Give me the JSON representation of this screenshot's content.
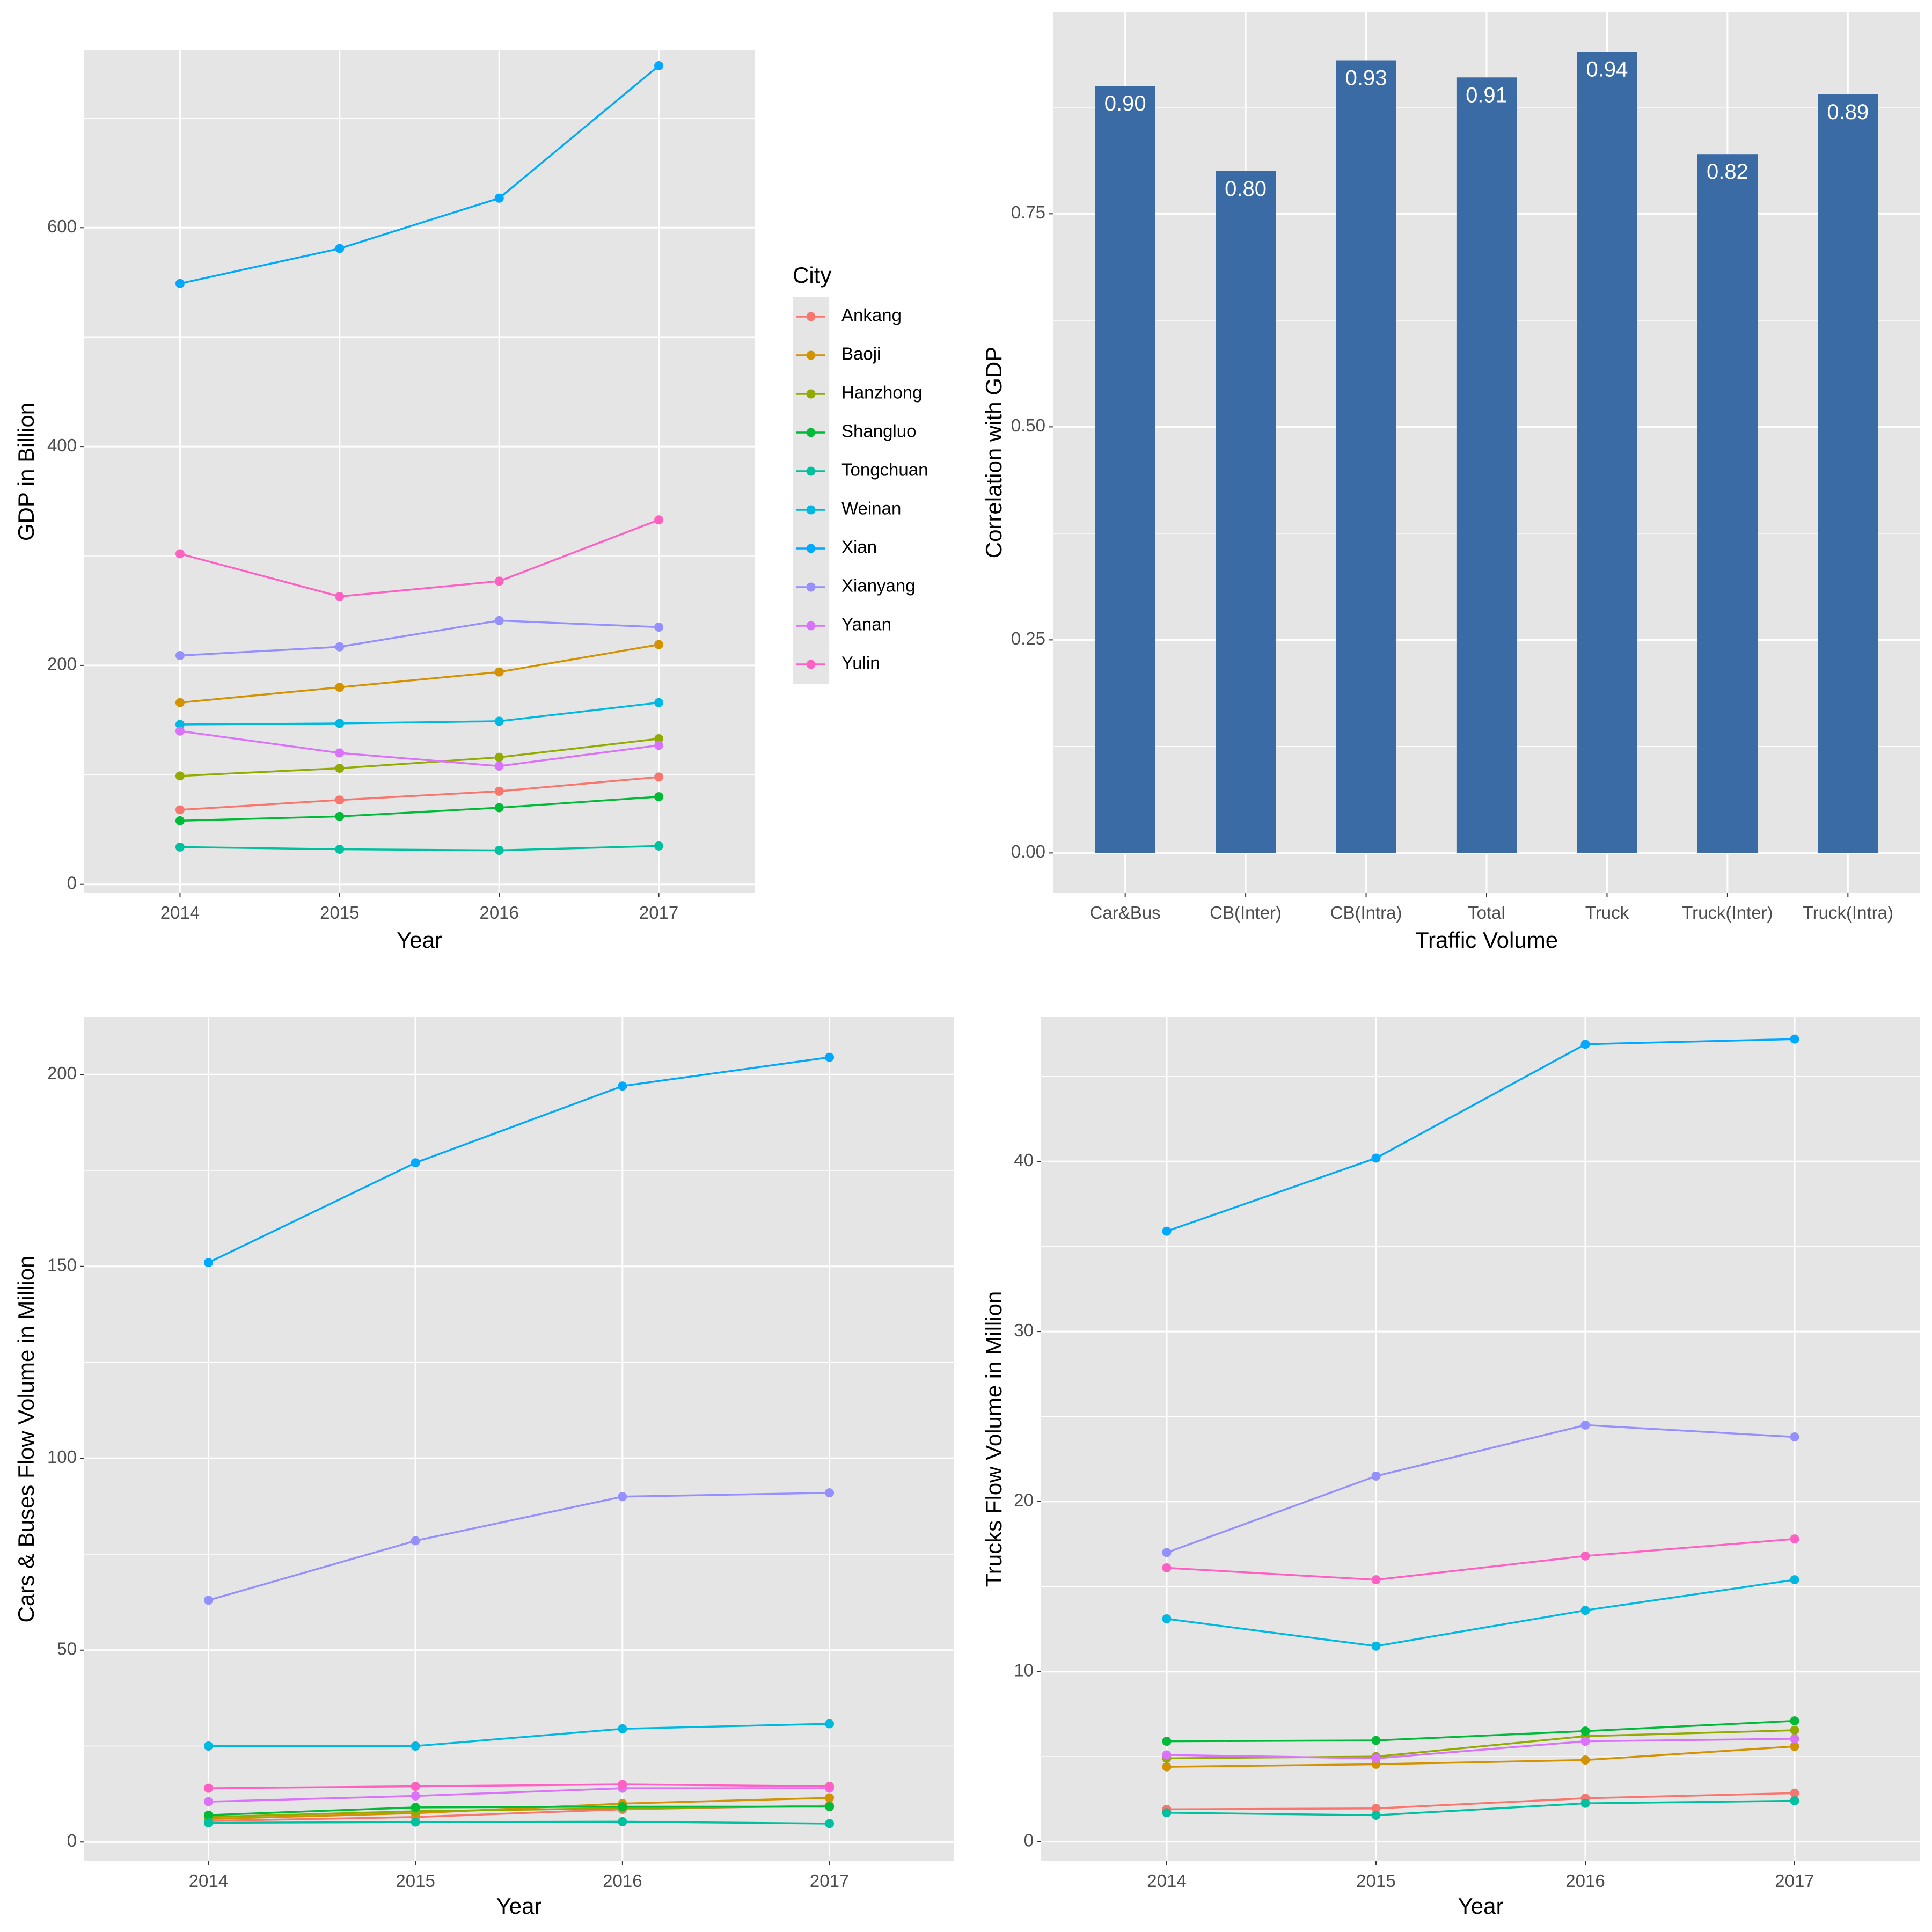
{
  "legend": {
    "title": "City",
    "cities": [
      "Ankang",
      "Baoji",
      "Hanzhong",
      "Shangluo",
      "Tongchuan",
      "Weinan",
      "Xian",
      "Xianyang",
      "Yanan",
      "Yulin"
    ],
    "colors": [
      "#F8766D",
      "#D39200",
      "#93AA00",
      "#00BA38",
      "#00C19F",
      "#00B9E3",
      "#00A8FF",
      "#9590FF",
      "#DB72FB",
      "#FF61C3"
    ]
  },
  "panel_bg": "#E5E5E5",
  "grid_color": "#FFFFFF",
  "bar_color": "#3A6BA5",
  "chart_data": [
    {
      "id": "gdp",
      "type": "line",
      "title": "",
      "xlabel": "Year",
      "ylabel": "GDP in Billion",
      "x": [
        "2014",
        "2015",
        "2016",
        "2017"
      ],
      "ylim": [
        -8,
        762
      ],
      "yticks": [
        0,
        200,
        400,
        600
      ],
      "ytick_labels": [
        "0",
        "200",
        "400",
        "600"
      ],
      "series": [
        {
          "name": "Ankang",
          "values": [
            68,
            77,
            85,
            98
          ]
        },
        {
          "name": "Baoji",
          "values": [
            166,
            180,
            194,
            219
          ]
        },
        {
          "name": "Hanzhong",
          "values": [
            99,
            106,
            116,
            133
          ]
        },
        {
          "name": "Shangluo",
          "values": [
            58,
            62,
            70,
            80
          ]
        },
        {
          "name": "Tongchuan",
          "values": [
            34,
            32,
            31,
            35
          ]
        },
        {
          "name": "Weinan",
          "values": [
            146,
            147,
            149,
            166
          ]
        },
        {
          "name": "Xian",
          "values": [
            549,
            581,
            627,
            748
          ]
        },
        {
          "name": "Xianyang",
          "values": [
            209,
            217,
            241,
            235
          ]
        },
        {
          "name": "Yanan",
          "values": [
            140,
            120,
            108,
            127
          ]
        },
        {
          "name": "Yulin",
          "values": [
            302,
            263,
            277,
            333
          ]
        }
      ]
    },
    {
      "id": "corr",
      "type": "bar",
      "title": "",
      "xlabel": "Traffic Volume",
      "ylabel": "Correlation with GDP",
      "categories": [
        "Car&Bus",
        "CB(Inter)",
        "CB(Intra)",
        "Total",
        "Truck",
        "Truck(Inter)",
        "Truck(Intra)"
      ],
      "values": [
        0.9,
        0.8,
        0.93,
        0.91,
        0.94,
        0.82,
        0.89
      ],
      "data_labels": [
        "0.90",
        "0.80",
        "0.93",
        "0.91",
        "0.94",
        "0.82",
        "0.89"
      ],
      "ylim": [
        -0.047,
        0.987
      ],
      "yticks": [
        0,
        0.25,
        0.5,
        0.75
      ],
      "ytick_labels": [
        "0.00",
        "0.25",
        "0.50",
        "0.75"
      ]
    },
    {
      "id": "carbus",
      "type": "line",
      "title": "",
      "xlabel": "Year",
      "ylabel": "Cars & Buses Flow Volume in Million",
      "x": [
        "2014",
        "2015",
        "2016",
        "2017"
      ],
      "ylim": [
        -5,
        215
      ],
      "yticks": [
        0,
        50,
        100,
        150,
        200
      ],
      "ytick_labels": [
        "0",
        "50",
        "100",
        "150",
        "200"
      ],
      "series": [
        {
          "name": "Ankang",
          "values": [
            5.5,
            6.5,
            8.5,
            9.5
          ]
        },
        {
          "name": "Baoji",
          "values": [
            6.0,
            7.5,
            10.0,
            11.5
          ]
        },
        {
          "name": "Hanzhong",
          "values": [
            6.5,
            8.0,
            8.8,
            9.3
          ]
        },
        {
          "name": "Shangluo",
          "values": [
            7.0,
            9.0,
            9.2,
            9.2
          ]
        },
        {
          "name": "Tongchuan",
          "values": [
            5.0,
            5.2,
            5.3,
            4.8
          ]
        },
        {
          "name": "Weinan",
          "values": [
            25.0,
            25.0,
            29.5,
            30.8
          ]
        },
        {
          "name": "Xian",
          "values": [
            151.0,
            177.0,
            197.0,
            204.5
          ]
        },
        {
          "name": "Xianyang",
          "values": [
            63.0,
            78.5,
            90.0,
            91.0
          ]
        },
        {
          "name": "Yanan",
          "values": [
            10.5,
            12.0,
            14.0,
            14.0
          ]
        },
        {
          "name": "Yulin",
          "values": [
            14.0,
            14.5,
            15.0,
            14.5
          ]
        }
      ]
    },
    {
      "id": "truck",
      "type": "line",
      "title": "",
      "xlabel": "Year",
      "ylabel": "Trucks Flow Volume in Million",
      "x": [
        "2014",
        "2015",
        "2016",
        "2017"
      ],
      "ylim": [
        -1.15,
        48.5
      ],
      "yticks": [
        0,
        10,
        20,
        30,
        40
      ],
      "ytick_labels": [
        "0",
        "10",
        "20",
        "30",
        "40"
      ],
      "series": [
        {
          "name": "Ankang",
          "values": [
            1.9,
            1.95,
            2.55,
            2.85
          ]
        },
        {
          "name": "Baoji",
          "values": [
            4.4,
            4.55,
            4.8,
            5.6
          ]
        },
        {
          "name": "Hanzhong",
          "values": [
            4.9,
            5.0,
            6.2,
            6.55
          ]
        },
        {
          "name": "Shangluo",
          "values": [
            5.9,
            5.95,
            6.5,
            7.1
          ]
        },
        {
          "name": "Tongchuan",
          "values": [
            1.7,
            1.55,
            2.25,
            2.4
          ]
        },
        {
          "name": "Weinan",
          "values": [
            13.1,
            11.5,
            13.6,
            15.4
          ]
        },
        {
          "name": "Xian",
          "values": [
            35.9,
            40.2,
            46.9,
            47.2
          ]
        },
        {
          "name": "Xianyang",
          "values": [
            17.0,
            21.5,
            24.5,
            23.8
          ]
        },
        {
          "name": "Yanan",
          "values": [
            5.1,
            4.9,
            5.9,
            6.05
          ]
        },
        {
          "name": "Yulin",
          "values": [
            16.1,
            15.4,
            16.8,
            17.8
          ]
        }
      ]
    }
  ]
}
